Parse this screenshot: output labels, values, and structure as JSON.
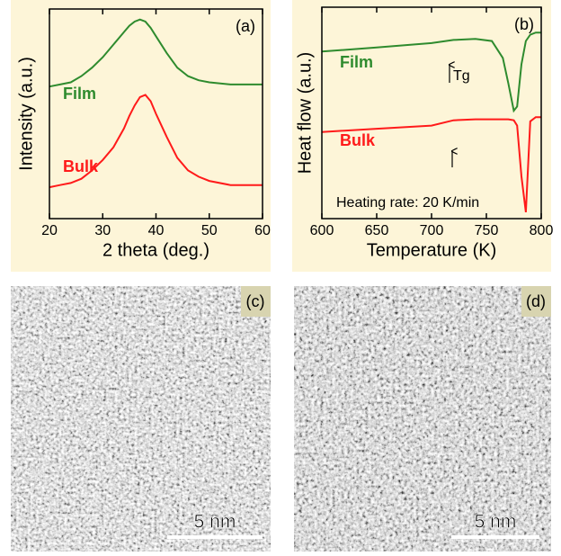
{
  "chart_data": [
    {
      "type": "line",
      "panel_label": "(a)",
      "x_label": "2 theta (deg.)",
      "y_label": "Intensity (a.u.)",
      "xlim": [
        20,
        60
      ],
      "xticks": [
        20,
        30,
        40,
        50,
        60
      ],
      "ylim": [
        0,
        10
      ],
      "x": [
        20,
        22,
        24,
        26,
        28,
        30,
        32,
        34,
        35,
        36,
        37,
        38,
        39,
        40,
        42,
        44,
        46,
        48,
        50,
        54,
        60
      ],
      "series": [
        {
          "name": "Film",
          "color": "#2e8b2e",
          "values": [
            6.3,
            6.4,
            6.5,
            6.8,
            7.2,
            7.7,
            8.3,
            8.9,
            9.2,
            9.4,
            9.5,
            9.4,
            9.1,
            8.7,
            7.9,
            7.2,
            6.8,
            6.6,
            6.5,
            6.4,
            6.4
          ]
        },
        {
          "name": "Bulk",
          "color": "#ff1a1a",
          "values": [
            1.5,
            1.6,
            1.7,
            1.9,
            2.3,
            2.8,
            3.4,
            4.3,
            4.9,
            5.4,
            5.8,
            5.9,
            5.6,
            5.0,
            3.9,
            2.9,
            2.3,
            2.0,
            1.8,
            1.6,
            1.6
          ]
        }
      ]
    },
    {
      "type": "line",
      "panel_label": "(b)",
      "x_label": "Temperature (K)",
      "y_label": "Heat flow (a.u.)",
      "annotations": [
        "Tg",
        "Heating rate: 20 K/min"
      ],
      "xlim": [
        600,
        800
      ],
      "xticks": [
        600,
        650,
        700,
        750,
        800
      ],
      "ylim": [
        0,
        10
      ],
      "x": [
        600,
        650,
        700,
        720,
        740,
        755,
        765,
        770,
        775,
        778,
        782,
        786,
        790,
        795,
        800
      ],
      "series": [
        {
          "name": "Film",
          "color": "#2e8b2e",
          "values": [
            7.9,
            8.1,
            8.3,
            8.45,
            8.5,
            8.4,
            7.6,
            6.4,
            5.1,
            5.3,
            7.3,
            8.4,
            8.7,
            8.8,
            8.8
          ]
        },
        {
          "name": "Bulk",
          "color": "#ff1a1a",
          "values": [
            4.1,
            4.25,
            4.4,
            4.65,
            4.7,
            4.7,
            4.7,
            4.7,
            4.65,
            4.4,
            2.0,
            0.3,
            4.6,
            4.8,
            4.8
          ]
        }
      ]
    }
  ],
  "images": [
    {
      "panel_label": "(c)",
      "scale_bar": "5 nm"
    },
    {
      "panel_label": "(d)",
      "scale_bar": "5 nm"
    }
  ]
}
